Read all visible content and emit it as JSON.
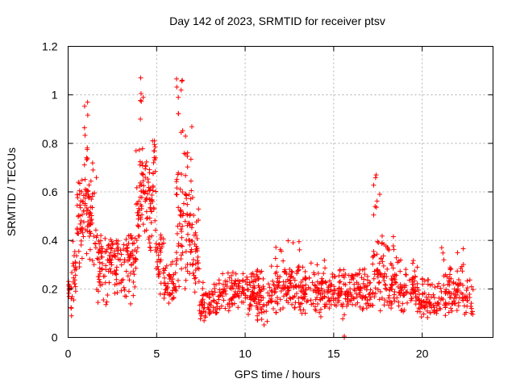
{
  "chart_data": {
    "type": "scatter",
    "title": "Day 142 of 2023, SRMTID for receiver ptsv",
    "xlabel": "GPS time / hours",
    "ylabel": "SRMTID / TECUs",
    "xlim": [
      0,
      24
    ],
    "ylim": [
      0,
      1.2
    ],
    "xticks": [
      0,
      5,
      10,
      15,
      20
    ],
    "xtick_labels": [
      "0",
      "5",
      "10",
      "15",
      "20"
    ],
    "yticks": [
      0,
      0.2,
      0.4,
      0.6,
      0.8,
      1,
      1.2
    ],
    "ytick_labels": [
      "0",
      "0.2",
      "0.4",
      "0.6",
      "0.8",
      "1",
      "1.2"
    ],
    "grid": true,
    "marker": "+",
    "series": [
      {
        "name": "SRMTID",
        "color": "#ff0000",
        "segments": [
          {
            "x_range": [
              0.0,
              0.2
            ],
            "median": 0.17,
            "lo": 0.07,
            "hi": 0.26,
            "count": 14
          },
          {
            "x_range": [
              0.2,
              0.5
            ],
            "median": 0.24,
            "lo": 0.12,
            "hi": 0.42,
            "count": 22
          },
          {
            "x_range": [
              0.5,
              0.85
            ],
            "median": 0.45,
            "lo": 0.2,
            "hi": 0.71,
            "count": 36
          },
          {
            "x_range": [
              0.85,
              1.15
            ],
            "median": 0.55,
            "lo": 0.25,
            "hi": 0.97,
            "count": 36
          },
          {
            "x_range": [
              1.15,
              1.6
            ],
            "median": 0.45,
            "lo": 0.2,
            "hi": 0.72,
            "count": 38
          },
          {
            "x_range": [
              1.6,
              2.4
            ],
            "median": 0.3,
            "lo": 0.1,
            "hi": 0.42,
            "count": 60
          },
          {
            "x_range": [
              2.4,
              3.2
            ],
            "median": 0.28,
            "lo": 0.12,
            "hi": 0.4,
            "count": 55
          },
          {
            "x_range": [
              3.2,
              3.8
            ],
            "median": 0.3,
            "lo": 0.1,
            "hi": 0.42,
            "count": 45
          },
          {
            "x_range": [
              3.8,
              4.05
            ],
            "median": 0.45,
            "lo": 0.2,
            "hi": 0.8,
            "count": 25
          },
          {
            "x_range": [
              4.05,
              4.25
            ],
            "median": 0.62,
            "lo": 0.35,
            "hi": 1.08,
            "count": 30
          },
          {
            "x_range": [
              4.25,
              4.7
            ],
            "median": 0.55,
            "lo": 0.3,
            "hi": 0.75,
            "count": 40
          },
          {
            "x_range": [
              4.7,
              4.95
            ],
            "median": 0.6,
            "lo": 0.3,
            "hi": 0.87,
            "count": 28
          },
          {
            "x_range": [
              4.95,
              5.4
            ],
            "median": 0.3,
            "lo": 0.15,
            "hi": 0.5,
            "count": 32
          },
          {
            "x_range": [
              5.4,
              6.1
            ],
            "median": 0.2,
            "lo": 0.12,
            "hi": 0.32,
            "count": 45
          },
          {
            "x_range": [
              6.1,
              6.6
            ],
            "median": 0.45,
            "lo": 0.15,
            "hi": 1.07,
            "count": 50
          },
          {
            "x_range": [
              6.6,
              7.0
            ],
            "median": 0.45,
            "lo": 0.15,
            "hi": 0.98,
            "count": 45
          },
          {
            "x_range": [
              7.0,
              7.4
            ],
            "median": 0.3,
            "lo": 0.15,
            "hi": 0.62,
            "count": 35
          },
          {
            "x_range": [
              7.4,
              8.5
            ],
            "median": 0.13,
            "lo": 0.06,
            "hi": 0.24,
            "count": 65
          },
          {
            "x_range": [
              8.5,
              10.6
            ],
            "median": 0.17,
            "lo": 0.07,
            "hi": 0.27,
            "count": 130
          },
          {
            "x_range": [
              10.6,
              11.6
            ],
            "median": 0.14,
            "lo": 0.04,
            "hi": 0.3,
            "count": 65
          },
          {
            "x_range": [
              11.6,
              13.2
            ],
            "median": 0.2,
            "lo": 0.07,
            "hi": 0.4,
            "count": 110
          },
          {
            "x_range": [
              13.2,
              14.6
            ],
            "median": 0.18,
            "lo": 0.06,
            "hi": 0.33,
            "count": 90
          },
          {
            "x_range": [
              14.6,
              16.0
            ],
            "median": 0.17,
            "lo": 0.05,
            "hi": 0.28,
            "count": 90
          },
          {
            "x_range": [
              16.0,
              17.2
            ],
            "median": 0.18,
            "lo": 0.08,
            "hi": 0.3,
            "count": 75
          },
          {
            "x_range": [
              17.2,
              17.6
            ],
            "median": 0.25,
            "lo": 0.07,
            "hi": 0.67,
            "count": 35
          },
          {
            "x_range": [
              17.6,
              18.6
            ],
            "median": 0.22,
            "lo": 0.08,
            "hi": 0.42,
            "count": 70
          },
          {
            "x_range": [
              18.6,
              19.8
            ],
            "median": 0.18,
            "lo": 0.08,
            "hi": 0.33,
            "count": 75
          },
          {
            "x_range": [
              19.8,
              21.0
            ],
            "median": 0.13,
            "lo": 0.06,
            "hi": 0.25,
            "count": 75
          },
          {
            "x_range": [
              21.0,
              22.9
            ],
            "median": 0.17,
            "lo": 0.07,
            "hi": 0.37,
            "count": 110
          }
        ],
        "outliers": [
          {
            "x": 15.6,
            "y": 0.0
          },
          {
            "x": 15.6,
            "y": 0.005
          },
          {
            "x": 4.1,
            "y": 1.07
          },
          {
            "x": 6.45,
            "y": 1.06
          },
          {
            "x": 1.1,
            "y": 0.97
          },
          {
            "x": 17.4,
            "y": 0.67
          },
          {
            "x": 17.6,
            "y": 0.59
          },
          {
            "x": 21.1,
            "y": 0.37
          }
        ]
      }
    ]
  }
}
